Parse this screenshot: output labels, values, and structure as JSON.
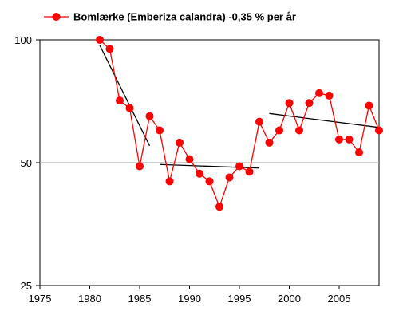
{
  "chart_data": {
    "type": "line",
    "title": "",
    "xlabel": "",
    "ylabel": "",
    "y_scale": "log",
    "xlim": [
      1975,
      2009
    ],
    "ylim": [
      25,
      100
    ],
    "x_ticks": [
      1975,
      1980,
      1985,
      1990,
      1995,
      2000,
      2005
    ],
    "y_ticks": [
      25,
      50,
      100
    ],
    "grid": "horizontal reference line at 50",
    "legend_position": "top",
    "series": [
      {
        "name": "Bomlærke (Emberiza calandra) -0,35 % per år",
        "color": "#ff0000",
        "marker": "circle",
        "points": [
          [
            1981,
            100
          ],
          [
            1982,
            95
          ],
          [
            1983,
            71
          ],
          [
            1984,
            68
          ],
          [
            1985,
            49
          ],
          [
            1986,
            65
          ],
          [
            1987,
            60
          ],
          [
            1988,
            45
          ],
          [
            1989,
            56
          ],
          [
            1990,
            51
          ],
          [
            1991,
            47
          ],
          [
            1992,
            45
          ],
          [
            1993,
            39
          ],
          [
            1994,
            46
          ],
          [
            1995,
            49
          ],
          [
            1996,
            47.5
          ],
          [
            1997,
            63
          ],
          [
            1998,
            56
          ],
          [
            1999,
            60
          ],
          [
            2000,
            70
          ],
          [
            2001,
            60
          ],
          [
            2002,
            70
          ],
          [
            2003,
            74
          ],
          [
            2004,
            73
          ],
          [
            2005,
            57
          ],
          [
            2006,
            57
          ],
          [
            2007,
            53
          ],
          [
            2008,
            69
          ],
          [
            2009,
            60
          ]
        ]
      }
    ],
    "trend_lines": [
      {
        "color": "#000000",
        "points": [
          [
            1981,
            97
          ],
          [
            1986,
            55
          ]
        ]
      },
      {
        "color": "#000000",
        "points": [
          [
            1987,
            49.5
          ],
          [
            1997,
            48.5
          ]
        ]
      },
      {
        "color": "#000000",
        "points": [
          [
            1998,
            66
          ],
          [
            2009,
            61
          ]
        ]
      }
    ]
  }
}
